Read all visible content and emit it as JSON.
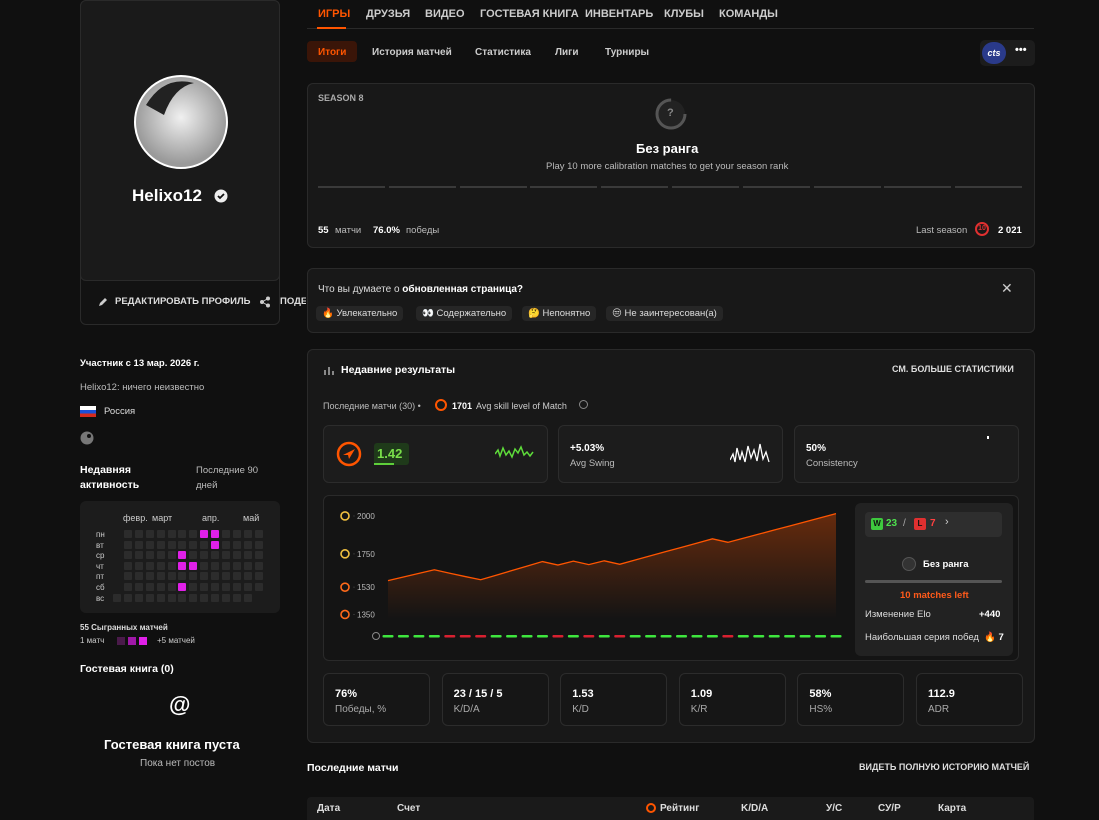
{
  "nav": {
    "tabs": [
      "ИГРЫ",
      "ДРУЗЬЯ",
      "ВИДЕО",
      "ГОСТЕВАЯ КНИГА",
      "ИНВЕНТАРЬ",
      "КЛУБЫ",
      "КОМАНДЫ"
    ],
    "subtabs": [
      "Итоги",
      "История матчей",
      "Статистика",
      "Лиги",
      "Турниры"
    ],
    "badge": "cts",
    "more": "•••"
  },
  "profile": {
    "name": "Helixo12",
    "edit": "РЕДАКТИРОВАТЬ ПРОФИЛЬ",
    "share": "ПОДЕ",
    "member_since": "Участник с 13 мар. 2026 г.",
    "bio": "Helixo12: ничего неизвестно",
    "country": "Россия"
  },
  "activity": {
    "title": "Недавняя активность",
    "period": "Последние 90 дней",
    "months": [
      "февр.",
      "март",
      "апр.",
      "май"
    ],
    "days": [
      "пн",
      "вт",
      "ср",
      "чт",
      "пт",
      "сб",
      "вс"
    ],
    "cells": [
      [
        null,
        0,
        0,
        0,
        0,
        0,
        0,
        0,
        2,
        2,
        0,
        0,
        0,
        0
      ],
      [
        null,
        0,
        0,
        0,
        0,
        0,
        0,
        0,
        0,
        2,
        0,
        0,
        0,
        0
      ],
      [
        null,
        0,
        0,
        0,
        0,
        0,
        2,
        0,
        0,
        0,
        0,
        0,
        0,
        0
      ],
      [
        null,
        0,
        0,
        0,
        0,
        0,
        2,
        2,
        0,
        0,
        0,
        0,
        0,
        0
      ],
      [
        null,
        0,
        0,
        0,
        0,
        0,
        0,
        0,
        0,
        0,
        0,
        0,
        0,
        0
      ],
      [
        null,
        0,
        0,
        0,
        0,
        0,
        2,
        0,
        0,
        0,
        0,
        0,
        0,
        0
      ],
      [
        0,
        0,
        0,
        0,
        0,
        0,
        0,
        0,
        0,
        0,
        0,
        0,
        0,
        null
      ]
    ],
    "total": "55 Сыгранных матчей",
    "legend_min": "1 матч",
    "legend_max": "+5 матчей"
  },
  "guestbook": {
    "title": "Гостевая книга (0)",
    "empty": "Гостевая книга пуста",
    "hint": "Пока нет постов"
  },
  "season": {
    "label": "SEASON 8",
    "rank_icon": "?",
    "rank": "Без ранга",
    "hint": "Play 10 more calibration matches to get your season rank",
    "matches": "55",
    "matches_label": "матчи",
    "winrate": "76.0%",
    "winrate_label": "победы",
    "last_season_label": "Last season",
    "last_level": "10",
    "last_elo": "2 021"
  },
  "feedback": {
    "question": "Что вы думаете о ",
    "question_bold": "обновленная страница?",
    "options": [
      "🔥 Увлекательно",
      "👀 Содержательно",
      "🤔 Непонятно",
      "😒 Не заинтересован(а)"
    ]
  },
  "recent": {
    "title": "Недавние результаты",
    "more": "СМ. БОЛЬШЕ СТАТИСТИКИ",
    "subtitle": "Последние матчи (30) •",
    "avg_skill": "1701",
    "avg_skill_label": "Avg skill level of Match",
    "cards": [
      {
        "value": "1.42"
      },
      {
        "value": "+5.03%",
        "label": "Avg Swing"
      },
      {
        "value": "50%",
        "label": "Consistency"
      }
    ]
  },
  "chart_data": {
    "type": "line",
    "ylim": [
      1320,
      2030
    ],
    "yticks": [
      1350,
      1530,
      1750,
      2000
    ],
    "color": "#ff5500",
    "values": [
      1573,
      1597,
      1621,
      1645,
      1622,
      1600,
      1579,
      1609,
      1639,
      1669,
      1699,
      1676,
      1702,
      1679,
      1704,
      1681,
      1709,
      1737,
      1765,
      1793,
      1821,
      1849,
      1826,
      1853,
      1880,
      1907,
      1934,
      1961,
      1988,
      2015
    ],
    "results": [
      "W",
      "W",
      "W",
      "W",
      "L",
      "L",
      "L",
      "W",
      "W",
      "W",
      "W",
      "L",
      "W",
      "L",
      "W",
      "L",
      "W",
      "W",
      "W",
      "W",
      "W",
      "W",
      "L",
      "W",
      "W",
      "W",
      "W",
      "W",
      "W",
      "W"
    ]
  },
  "summary": {
    "w": "W",
    "wins": "23",
    "l": "L",
    "losses": "7",
    "rank": "Без ранга",
    "left": "10 matches left",
    "elo_change_label": "Изменение Elo",
    "elo_change": "+440",
    "streak_label": "Наибольшая серия побед",
    "streak": "🔥 7"
  },
  "stats": [
    {
      "value": "76%",
      "label": "Победы, %"
    },
    {
      "value": "23 / 15 / 5",
      "label": "K/D/A"
    },
    {
      "value": "1.53",
      "label": "K/D"
    },
    {
      "value": "1.09",
      "label": "K/R"
    },
    {
      "value": "58%",
      "label": "HS%"
    },
    {
      "value": "112.9",
      "label": "ADR"
    }
  ],
  "matches": {
    "title": "Последние матчи",
    "more": "ВИДЕТЬ ПОЛНУЮ ИСТОРИЮ МАТЧЕЙ",
    "columns": [
      "Дата",
      "Счет",
      "Рейтинг",
      "K/D/A",
      "У/С",
      "СУ/Р",
      "Карта"
    ]
  }
}
